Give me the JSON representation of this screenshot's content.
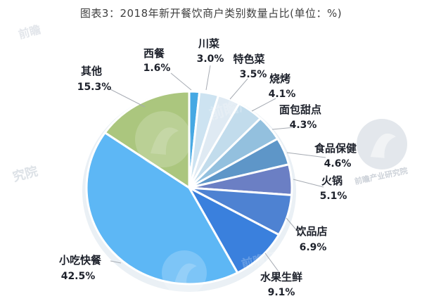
{
  "header": {
    "title": "图表3：2018年新开餐饮商户类别数量占比(单位：%)"
  },
  "chart_data": {
    "type": "pie",
    "title": "图表3：2018年新开餐饮商户类别数量占比(单位：%)",
    "unit": "%",
    "start_angle_deg": 0,
    "direction": "clockwise",
    "legend": "none",
    "categories": [
      "西餐",
      "川菜",
      "特色菜",
      "烧烤",
      "面包甜点",
      "食品保健",
      "火锅",
      "饮品店",
      "水果生鲜",
      "小吃快餐",
      "其他"
    ],
    "values": [
      1.6,
      3.0,
      3.5,
      4.1,
      4.3,
      4.6,
      5.1,
      6.9,
      9.1,
      42.5,
      15.3
    ],
    "value_labels": [
      "1.6%",
      "3.0%",
      "3.5%",
      "4.1%",
      "4.3%",
      "4.6%",
      "5.1%",
      "6.9%",
      "9.1%",
      "42.5%",
      "15.3%"
    ],
    "colors": [
      "#45a8e3",
      "#cde3f1",
      "#dfeaf3",
      "#c2dcec",
      "#93c0de",
      "#5e96c8",
      "#6b7fc4",
      "#4e82d2",
      "#3a80dd",
      "#5db7f5",
      "#abc67e"
    ],
    "slice_border_color": "#ffffff",
    "leader_line_color": "#a6abb3",
    "label_text_color": "#1d212b"
  },
  "watermark": {
    "text": "前瞻产业研究院"
  }
}
